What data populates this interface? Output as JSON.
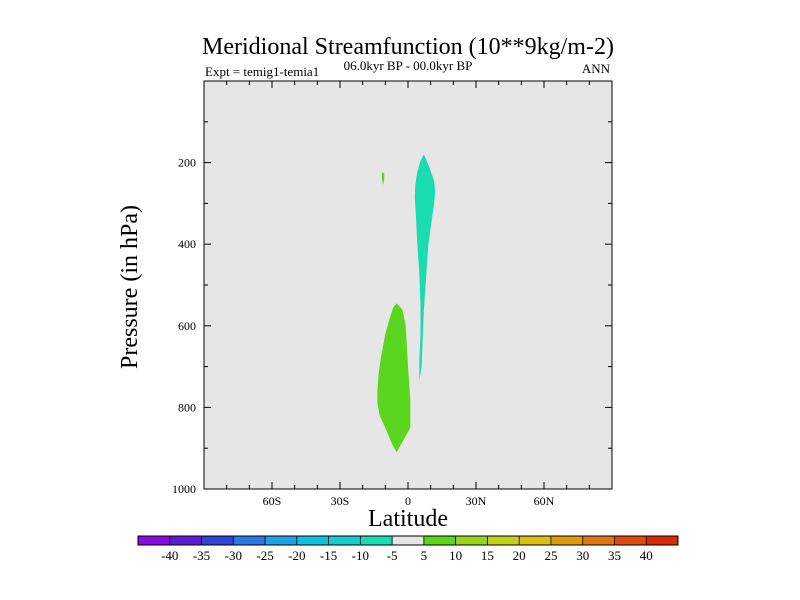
{
  "chart_data": {
    "type": "contour",
    "title": "Meridional Streamfunction (10**9kg/m-2)",
    "subtitle": "06.0kyr BP - 00.0kyr BP",
    "left_label": "Expt = temig1-temia1",
    "right_label": "ANN",
    "xlabel": "Latitude",
    "ylabel": "Pressure (in hPa)",
    "xlim": [
      -90,
      90
    ],
    "ylim": [
      1000,
      0
    ],
    "xticks": [
      {
        "value": -60,
        "label": "60S"
      },
      {
        "value": -30,
        "label": "30S"
      },
      {
        "value": 0,
        "label": "0"
      },
      {
        "value": 30,
        "label": "30N"
      },
      {
        "value": 60,
        "label": "60N"
      }
    ],
    "yticks": [
      {
        "value": 200,
        "label": "200"
      },
      {
        "value": 400,
        "label": "400"
      },
      {
        "value": 600,
        "label": "600"
      },
      {
        "value": 800,
        "label": "800"
      },
      {
        "value": 1000,
        "label": "1000"
      }
    ],
    "colorbar": {
      "labels": [
        "-40",
        "-35",
        "-30",
        "-25",
        "-20",
        "-15",
        "-10",
        "-5",
        "5",
        "10",
        "15",
        "20",
        "25",
        "30",
        "35",
        "40"
      ],
      "colors": [
        "#8a0de0",
        "#5b1ed6",
        "#2f45d9",
        "#2a78e0",
        "#1fa0e6",
        "#11bfe0",
        "#14cccc",
        "#19dcb0",
        "#e6e6e6",
        "#5ad61e",
        "#98d41a",
        "#c4d017",
        "#dcc010",
        "#e09a0c",
        "#e07510",
        "#e04a10",
        "#d82a08"
      ]
    },
    "regions": [
      {
        "name": "negative-cell-upper",
        "level": "-5 to -10",
        "color": "#19dcb0",
        "points": [
          [
            7.0,
            180
          ],
          [
            9.5,
            212
          ],
          [
            11.5,
            245
          ],
          [
            12.0,
            270
          ],
          [
            11.5,
            300
          ],
          [
            10.5,
            340
          ],
          [
            9.0,
            400
          ],
          [
            8.0,
            480
          ],
          [
            7.0,
            560
          ],
          [
            6.5,
            630
          ],
          [
            6.0,
            700
          ],
          [
            5.0,
            735
          ],
          [
            5.0,
            690
          ],
          [
            5.5,
            620
          ],
          [
            5.5,
            550
          ],
          [
            5.0,
            470
          ],
          [
            4.0,
            390
          ],
          [
            3.5,
            330
          ],
          [
            3.0,
            285
          ],
          [
            3.2,
            255
          ],
          [
            4.0,
            225
          ],
          [
            5.5,
            195
          ]
        ]
      },
      {
        "name": "positive-cell-lower",
        "level": "5 to 10",
        "color": "#5ad61e",
        "points": [
          [
            -5.0,
            545
          ],
          [
            -2.5,
            560
          ],
          [
            -1.0,
            600
          ],
          [
            -0.5,
            650
          ],
          [
            0.0,
            700
          ],
          [
            1.0,
            780
          ],
          [
            1.0,
            850
          ],
          [
            -2.0,
            880
          ],
          [
            -5.0,
            910
          ],
          [
            -7.0,
            890
          ],
          [
            -10.0,
            850
          ],
          [
            -12.5,
            820
          ],
          [
            -13.5,
            790
          ],
          [
            -13.5,
            760
          ],
          [
            -13.0,
            720
          ],
          [
            -12.0,
            680
          ],
          [
            -10.0,
            620
          ],
          [
            -8.0,
            580
          ],
          [
            -6.5,
            555
          ]
        ]
      },
      {
        "name": "positive-cell-small",
        "level": "5 to 10",
        "color": "#5ad61e",
        "points": [
          [
            -11.5,
            225
          ],
          [
            -10.5,
            225
          ],
          [
            -10.5,
            240
          ],
          [
            -11.0,
            255
          ],
          [
            -11.5,
            240
          ]
        ]
      }
    ]
  }
}
